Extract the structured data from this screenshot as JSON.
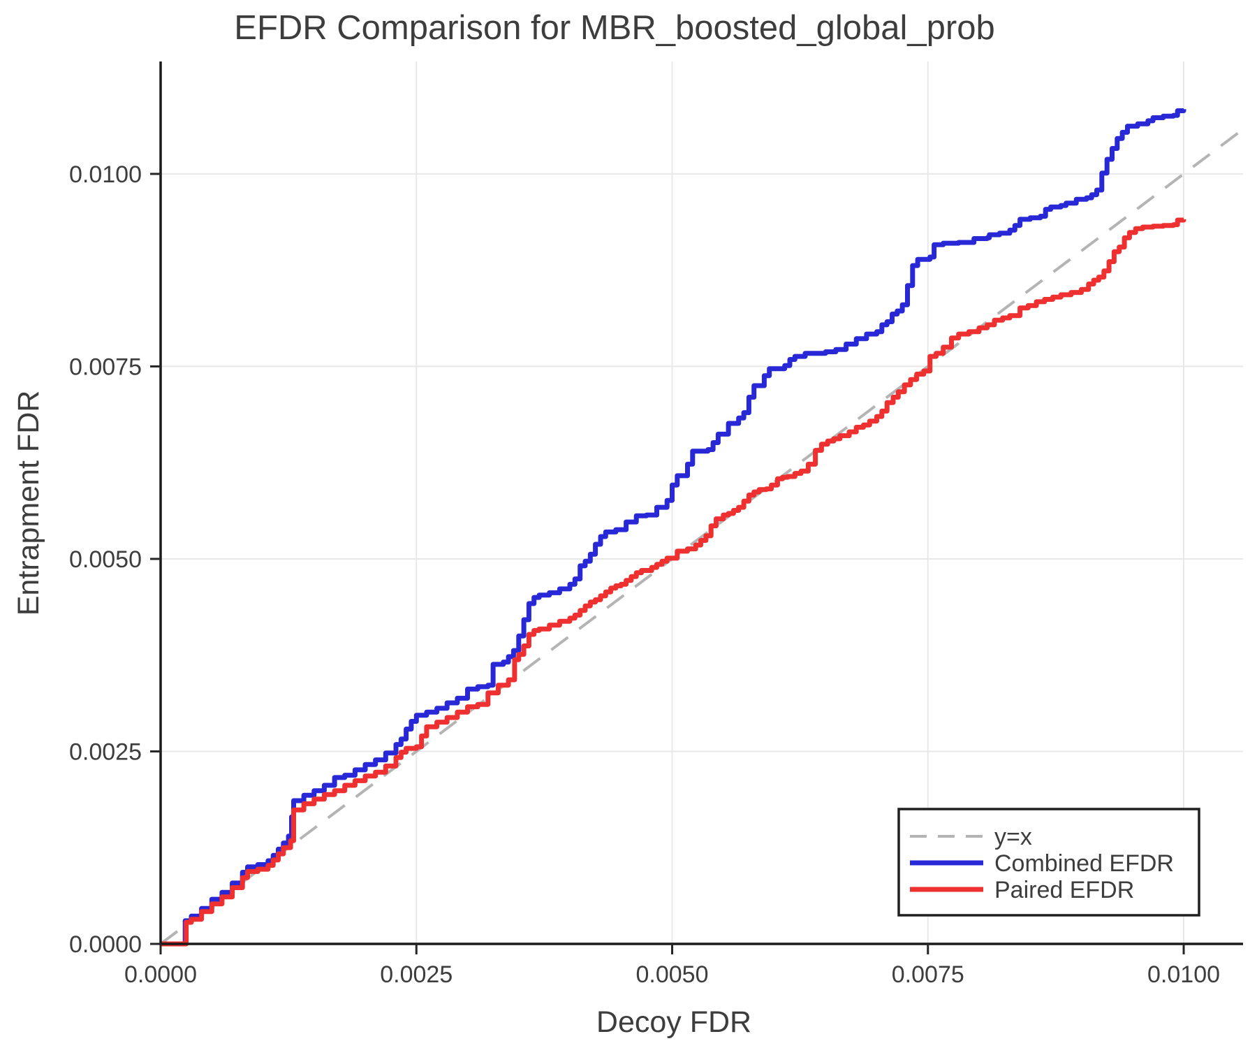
{
  "chart_data": {
    "type": "line",
    "title": "EFDR Comparison for MBR_boosted_global_prob",
    "xlabel": "Decoy FDR",
    "ylabel": "Entrapment FDR",
    "xlim": [
      0,
      0.01058
    ],
    "ylim": [
      0,
      0.01146
    ],
    "grid": true,
    "legend_position": "lower-right",
    "x_ticks": [
      {
        "value": 0.0,
        "label": "0.0000"
      },
      {
        "value": 0.0025,
        "label": "0.0025"
      },
      {
        "value": 0.005,
        "label": "0.0050"
      },
      {
        "value": 0.0075,
        "label": "0.0075"
      },
      {
        "value": 0.01,
        "label": "0.0100"
      }
    ],
    "y_ticks": [
      {
        "value": 0.0,
        "label": "0.0000"
      },
      {
        "value": 0.0025,
        "label": "0.0025"
      },
      {
        "value": 0.005,
        "label": "0.0050"
      },
      {
        "value": 0.0075,
        "label": "0.0075"
      },
      {
        "value": 0.01,
        "label": "0.0100"
      }
    ],
    "unit_scale": 0.0001,
    "identity_line": {
      "label": "y=x",
      "color": "#b4b4b4",
      "style": "dashed",
      "from": 0,
      "to": 0.01058
    },
    "series": [
      {
        "name": "Combined EFDR",
        "color": "#2828d7",
        "points": [
          [
            0,
            0
          ],
          [
            2.3,
            0
          ],
          [
            2.4,
            3
          ],
          [
            3,
            3.6
          ],
          [
            4,
            4.6
          ],
          [
            5,
            5.8
          ],
          [
            6,
            6.7
          ],
          [
            7,
            7.9
          ],
          [
            8,
            9.3
          ],
          [
            8.5,
            10
          ],
          [
            9.5,
            10.3
          ],
          [
            10.5,
            10.8
          ],
          [
            11,
            11.5
          ],
          [
            11.5,
            12.3
          ],
          [
            12,
            13.1
          ],
          [
            12.5,
            14
          ],
          [
            12.8,
            16.5
          ],
          [
            13,
            18.6
          ],
          [
            14,
            19.3
          ],
          [
            15,
            19.9
          ],
          [
            16,
            20.6
          ],
          [
            17,
            21.6
          ],
          [
            18,
            21.9
          ],
          [
            19,
            22.6
          ],
          [
            20,
            23.3
          ],
          [
            21,
            23.9
          ],
          [
            22,
            24.8
          ],
          [
            23,
            25.9
          ],
          [
            23.5,
            26.6
          ],
          [
            24,
            27.9
          ],
          [
            24.5,
            28.9
          ],
          [
            25,
            29.7
          ],
          [
            26,
            30.1
          ],
          [
            27,
            30.6
          ],
          [
            28,
            31.3
          ],
          [
            29,
            31.9
          ],
          [
            30,
            33.1
          ],
          [
            31,
            33.4
          ],
          [
            32,
            33.6
          ],
          [
            32.5,
            36.3
          ],
          [
            33.5,
            36.6
          ],
          [
            34,
            37.3
          ],
          [
            34.5,
            38.1
          ],
          [
            35,
            40
          ],
          [
            35.5,
            42.1
          ],
          [
            36,
            44.2
          ],
          [
            36.5,
            45
          ],
          [
            37,
            45.3
          ],
          [
            38,
            45.6
          ],
          [
            39,
            46.1
          ],
          [
            40,
            46.7
          ],
          [
            40.5,
            47.4
          ],
          [
            41,
            49.1
          ],
          [
            41.5,
            49.7
          ],
          [
            42,
            50.6
          ],
          [
            42.5,
            51.9
          ],
          [
            43,
            52.9
          ],
          [
            43.5,
            53.5
          ],
          [
            44.5,
            53.8
          ],
          [
            45.5,
            54.8
          ],
          [
            46.5,
            55.6
          ],
          [
            47.5,
            55.7
          ],
          [
            48.5,
            56.7
          ],
          [
            49.5,
            57.6
          ],
          [
            50,
            59.6
          ],
          [
            50.5,
            60.8
          ],
          [
            51.5,
            62.3
          ],
          [
            52,
            64
          ],
          [
            53.5,
            64.2
          ],
          [
            54,
            65.1
          ],
          [
            54.5,
            66.2
          ],
          [
            55.5,
            67.6
          ],
          [
            56.5,
            68.3
          ],
          [
            57,
            69
          ],
          [
            57.5,
            71
          ],
          [
            58,
            72.5
          ],
          [
            59,
            73.8
          ],
          [
            59.5,
            74.7
          ],
          [
            61,
            75.1
          ],
          [
            61.5,
            75.9
          ],
          [
            62,
            76.3
          ],
          [
            63,
            76.7
          ],
          [
            65,
            76.9
          ],
          [
            66,
            77.2
          ],
          [
            67,
            77.9
          ],
          [
            68,
            78.6
          ],
          [
            69,
            79.2
          ],
          [
            70,
            79.5
          ],
          [
            70.5,
            80.4
          ],
          [
            71,
            80.8
          ],
          [
            71.5,
            81.8
          ],
          [
            72,
            82.2
          ],
          [
            72.5,
            83
          ],
          [
            73,
            85.5
          ],
          [
            73.5,
            88.1
          ],
          [
            74,
            88.9
          ],
          [
            75.2,
            89.2
          ],
          [
            75.6,
            90.8
          ],
          [
            76.5,
            91
          ],
          [
            78,
            91.1
          ],
          [
            79.5,
            91.6
          ],
          [
            80.8,
            91.7
          ],
          [
            81,
            92.1
          ],
          [
            82,
            92.3
          ],
          [
            83,
            92.7
          ],
          [
            83.5,
            93.3
          ],
          [
            84,
            94.1
          ],
          [
            85,
            94.3
          ],
          [
            86,
            94.5
          ],
          [
            86.5,
            95.4
          ],
          [
            87,
            95.7
          ],
          [
            88,
            95.9
          ],
          [
            88.5,
            96.2
          ],
          [
            89.5,
            96.7
          ],
          [
            90.5,
            96.9
          ],
          [
            91,
            97.3
          ],
          [
            91.5,
            97.9
          ],
          [
            92,
            100.1
          ],
          [
            92.5,
            101.9
          ],
          [
            93,
            103.3
          ],
          [
            93.5,
            104.6
          ],
          [
            94,
            105.4
          ],
          [
            94.5,
            106.2
          ],
          [
            95.5,
            106.5
          ],
          [
            96.5,
            106.9
          ],
          [
            97,
            107.3
          ],
          [
            98,
            107.5
          ],
          [
            99,
            107.6
          ],
          [
            99.4,
            108.2
          ],
          [
            100,
            108.4
          ]
        ]
      },
      {
        "name": "Paired EFDR",
        "color": "#ee3030",
        "points": [
          [
            0,
            0
          ],
          [
            2.3,
            0
          ],
          [
            2.5,
            2.8
          ],
          [
            3,
            3.2
          ],
          [
            4,
            4.2
          ],
          [
            5,
            5.2
          ],
          [
            6,
            6.1
          ],
          [
            7,
            7.3
          ],
          [
            8,
            8.6
          ],
          [
            8.5,
            9.4
          ],
          [
            9.5,
            9.7
          ],
          [
            10.5,
            10.2
          ],
          [
            11,
            10.9
          ],
          [
            11.5,
            11.7
          ],
          [
            12,
            12.5
          ],
          [
            12.7,
            13.4
          ],
          [
            13,
            17.4
          ],
          [
            14,
            18.2
          ],
          [
            15,
            18.8
          ],
          [
            16,
            19.4
          ],
          [
            17,
            19.9
          ],
          [
            18,
            20.6
          ],
          [
            19,
            21.2
          ],
          [
            20,
            21.8
          ],
          [
            21,
            22.3
          ],
          [
            22,
            23.1
          ],
          [
            23,
            24.2
          ],
          [
            23.5,
            24.9
          ],
          [
            24,
            25.4
          ],
          [
            25,
            25.6
          ],
          [
            25.5,
            27
          ],
          [
            26,
            28.2
          ],
          [
            27,
            28.8
          ],
          [
            28,
            29.4
          ],
          [
            29,
            30.1
          ],
          [
            30,
            30.8
          ],
          [
            31,
            31.1
          ],
          [
            32,
            32.6
          ],
          [
            33,
            33.6
          ],
          [
            34,
            34.3
          ],
          [
            34.6,
            36.9
          ],
          [
            35,
            37.6
          ],
          [
            35.5,
            38.7
          ],
          [
            36,
            40.2
          ],
          [
            36.5,
            40.7
          ],
          [
            37,
            40.9
          ],
          [
            38,
            41.4
          ],
          [
            39,
            41.9
          ],
          [
            40,
            42.3
          ],
          [
            40.5,
            42.7
          ],
          [
            41,
            43.3
          ],
          [
            41.5,
            43.9
          ],
          [
            42,
            44.4
          ],
          [
            42.5,
            44.7
          ],
          [
            43,
            45.2
          ],
          [
            43.5,
            45.7
          ],
          [
            44,
            46.2
          ],
          [
            44.5,
            46.5
          ],
          [
            45,
            46.7
          ],
          [
            45.5,
            47.2
          ],
          [
            46,
            47.7
          ],
          [
            46.5,
            48.2
          ],
          [
            47,
            48.5
          ],
          [
            48,
            48.9
          ],
          [
            48.5,
            49.3
          ],
          [
            49,
            49.7
          ],
          [
            49.5,
            50.1
          ],
          [
            50.5,
            51
          ],
          [
            51.5,
            51.3
          ],
          [
            52.3,
            51.8
          ],
          [
            52.8,
            52.4
          ],
          [
            53.3,
            53
          ],
          [
            53.8,
            54.3
          ],
          [
            54.3,
            55.2
          ],
          [
            55,
            55.7
          ],
          [
            55.5,
            55.9
          ],
          [
            56,
            56.3
          ],
          [
            56.5,
            56.7
          ],
          [
            57,
            57.5
          ],
          [
            57.5,
            58.3
          ],
          [
            58,
            58.7
          ],
          [
            58.5,
            59
          ],
          [
            59.2,
            59.1
          ],
          [
            59.7,
            59.6
          ],
          [
            60.3,
            60.4
          ],
          [
            60.8,
            60.6
          ],
          [
            61.3,
            60.7
          ],
          [
            62,
            61.1
          ],
          [
            62.6,
            61.4
          ],
          [
            63.3,
            62.3
          ],
          [
            64,
            64.1
          ],
          [
            64.6,
            64.9
          ],
          [
            65.2,
            65.3
          ],
          [
            65.8,
            65.6
          ],
          [
            66.4,
            66
          ],
          [
            67.3,
            66.5
          ],
          [
            68,
            67.1
          ],
          [
            68.7,
            67.4
          ],
          [
            69.3,
            67.9
          ],
          [
            70,
            68.5
          ],
          [
            70.5,
            69.2
          ],
          [
            71,
            70.3
          ],
          [
            71.6,
            71
          ],
          [
            72.1,
            71.7
          ],
          [
            72.7,
            72.6
          ],
          [
            73.3,
            73.3
          ],
          [
            73.9,
            74
          ],
          [
            74.6,
            74.4
          ],
          [
            75.2,
            76.3
          ],
          [
            75.8,
            76.7
          ],
          [
            76.5,
            77.5
          ],
          [
            77.3,
            78.7
          ],
          [
            78,
            79.2
          ],
          [
            79,
            79.5
          ],
          [
            80,
            80
          ],
          [
            80.8,
            80.4
          ],
          [
            81.5,
            81
          ],
          [
            82.3,
            81.3
          ],
          [
            83,
            81.6
          ],
          [
            84,
            82.6
          ],
          [
            84.8,
            82.9
          ],
          [
            85.6,
            83.4
          ],
          [
            86.4,
            83.7
          ],
          [
            87.2,
            84
          ],
          [
            88,
            84.3
          ],
          [
            89,
            84.6
          ],
          [
            90,
            85
          ],
          [
            90.7,
            85.7
          ],
          [
            91.2,
            86.2
          ],
          [
            91.7,
            86.6
          ],
          [
            92.2,
            87.4
          ],
          [
            92.7,
            88.6
          ],
          [
            93.2,
            89.9
          ],
          [
            93.7,
            90.5
          ],
          [
            94.2,
            91.7
          ],
          [
            94.7,
            92.4
          ],
          [
            95.3,
            92.9
          ],
          [
            96,
            93.1
          ],
          [
            97,
            93.2
          ],
          [
            98,
            93.3
          ],
          [
            99,
            93.4
          ],
          [
            99.4,
            94
          ],
          [
            100,
            94.1
          ]
        ]
      }
    ],
    "legend": {
      "items": [
        {
          "label": "y=x"
        },
        {
          "label": "Combined EFDR"
        },
        {
          "label": "Paired EFDR"
        }
      ]
    },
    "colors": {
      "grid": "#e8e8e8",
      "spine": "#1a1a1a",
      "tick": "#262626",
      "text": "#3d3d3d",
      "legend_border": "#1f1f1f",
      "background": "#ffffff"
    }
  }
}
